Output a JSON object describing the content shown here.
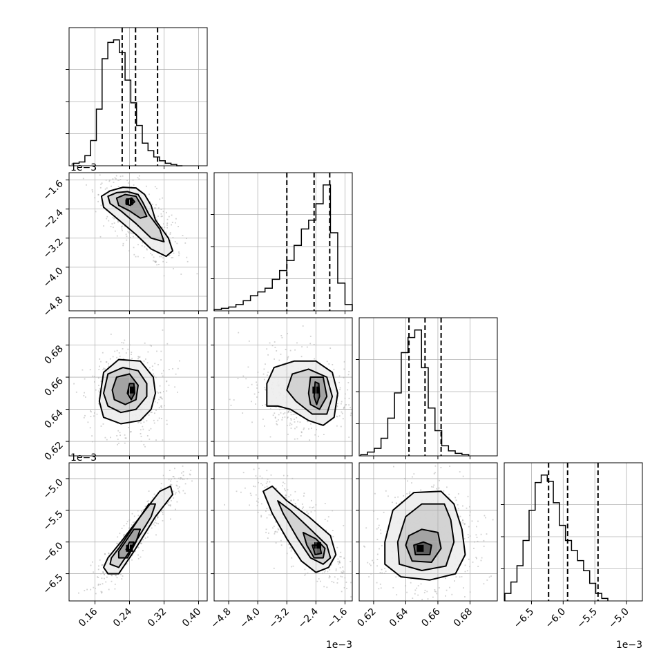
{
  "chart_data": {
    "type": "corner",
    "parameters": [
      {
        "xticks": [
          0.16,
          0.24,
          0.32,
          0.4
        ],
        "xtick_labels": [
          "0.16",
          "0.24",
          "0.32",
          "0.40"
        ],
        "range": [
          0.1,
          0.42
        ],
        "offset": "",
        "hist": {
          "edges_start": 0.11,
          "bin_width": 0.0133,
          "counts": [
            2,
            3,
            8,
            20,
            45,
            85,
            98,
            100,
            90,
            68,
            50,
            32,
            18,
            12,
            7,
            4,
            2,
            1,
            0
          ]
        },
        "quantiles": [
          0.223,
          0.254,
          0.305
        ]
      },
      {
        "xticks": [
          -4.8,
          -4.0,
          -3.2,
          -2.4,
          -1.6
        ],
        "xtick_labels": [
          "−4.8",
          "−4.0",
          "−3.2",
          "−2.4",
          "−1.6"
        ],
        "range": [
          -5.2,
          -1.4
        ],
        "offset": "1e−3",
        "hist": {
          "edges_start": -5.2,
          "bin_width": 0.2,
          "counts": [
            1,
            2,
            3,
            5,
            8,
            12,
            15,
            18,
            25,
            32,
            40,
            52,
            65,
            72,
            85,
            100,
            62,
            22,
            5
          ]
        },
        "quantiles": [
          -3.2,
          -2.45,
          -2.02
        ]
      },
      {
        "yticks": [
          0.62,
          0.64,
          0.66,
          0.68
        ],
        "xtick_labels": [
          "0.62",
          "0.64",
          "0.66",
          "0.68"
        ],
        "ytick_labels": [
          "0.62",
          "0.64",
          "0.66",
          "0.68"
        ],
        "range": [
          0.611,
          0.697
        ],
        "offset": "",
        "hist": {
          "edges_start": 0.612,
          "bin_width": 0.0042,
          "counts": [
            1,
            3,
            6,
            14,
            30,
            50,
            82,
            94,
            100,
            70,
            38,
            20,
            8,
            4,
            2,
            1
          ]
        },
        "quantiles": [
          0.642,
          0.652,
          0.662
        ]
      },
      {
        "xticks": [
          -6.5,
          -6.0,
          -5.5,
          -5.0
        ],
        "xtick_labels": [
          "−6.5",
          "−6.0",
          "−5.5",
          "−5.0"
        ],
        "ytick_labels": [
          "−6.5",
          "−6.0",
          "−5.5",
          "−5.0"
        ],
        "range": [
          -6.93,
          -4.75
        ],
        "offset": "1e−3",
        "hist": {
          "edges_start": -6.92,
          "bin_width": 0.0956,
          "counts": [
            6,
            15,
            28,
            48,
            72,
            94,
            100,
            95,
            78,
            60,
            48,
            40,
            32,
            24,
            14,
            6,
            2
          ]
        },
        "quantiles": [
          -6.23,
          -5.93,
          -5.45
        ]
      }
    ],
    "hist_y_ticks_frac": [
      0.25,
      0.5,
      0.75
    ],
    "pairs": [
      {
        "row": 1,
        "col": 0,
        "mode": [
          0.24,
          -2.2
        ],
        "contours": [
          [
            [
              0.175,
              -2.05
            ],
            [
              0.195,
              -1.9
            ],
            [
              0.225,
              -1.8
            ],
            [
              0.255,
              -1.82
            ],
            [
              0.275,
              -2.0
            ],
            [
              0.29,
              -2.3
            ],
            [
              0.3,
              -2.7
            ],
            [
              0.33,
              -3.2
            ],
            [
              0.34,
              -3.55
            ],
            [
              0.325,
              -3.7
            ],
            [
              0.29,
              -3.5
            ],
            [
              0.255,
              -3.1
            ],
            [
              0.215,
              -2.7
            ],
            [
              0.18,
              -2.35
            ]
          ],
          [
            [
              0.19,
              -2.05
            ],
            [
              0.21,
              -1.95
            ],
            [
              0.235,
              -1.92
            ],
            [
              0.26,
              -2.0
            ],
            [
              0.27,
              -2.2
            ],
            [
              0.285,
              -2.55
            ],
            [
              0.31,
              -2.95
            ],
            [
              0.32,
              -3.3
            ],
            [
              0.29,
              -3.2
            ],
            [
              0.255,
              -2.8
            ],
            [
              0.22,
              -2.45
            ],
            [
              0.195,
              -2.25
            ]
          ],
          [
            [
              0.21,
              -2.1
            ],
            [
              0.23,
              -2.0
            ],
            [
              0.255,
              -2.05
            ],
            [
              0.27,
              -2.35
            ],
            [
              0.28,
              -2.6
            ],
            [
              0.265,
              -2.65
            ],
            [
              0.24,
              -2.45
            ],
            [
              0.215,
              -2.3
            ]
          ],
          [
            [
              0.232,
              -2.15
            ],
            [
              0.245,
              -2.1
            ],
            [
              0.252,
              -2.2
            ],
            [
              0.242,
              -2.3
            ],
            [
              0.232,
              -2.26
            ]
          ]
        ]
      },
      {
        "row": 2,
        "col": 0,
        "mode": [
          0.245,
          0.652
        ],
        "contours": [
          [
            [
              0.17,
              0.645
            ],
            [
              0.18,
              0.663
            ],
            [
              0.215,
              0.671
            ],
            [
              0.265,
              0.67
            ],
            [
              0.295,
              0.66
            ],
            [
              0.3,
              0.65
            ],
            [
              0.29,
              0.64
            ],
            [
              0.265,
              0.633
            ],
            [
              0.22,
              0.631
            ],
            [
              0.18,
              0.635
            ]
          ],
          [
            [
              0.18,
              0.65
            ],
            [
              0.19,
              0.662
            ],
            [
              0.225,
              0.666
            ],
            [
              0.26,
              0.664
            ],
            [
              0.28,
              0.656
            ],
            [
              0.28,
              0.648
            ],
            [
              0.255,
              0.64
            ],
            [
              0.22,
              0.638
            ],
            [
              0.19,
              0.642
            ]
          ],
          [
            [
              0.2,
              0.652
            ],
            [
              0.21,
              0.66
            ],
            [
              0.24,
              0.662
            ],
            [
              0.26,
              0.655
            ],
            [
              0.255,
              0.646
            ],
            [
              0.23,
              0.643
            ],
            [
              0.205,
              0.646
            ]
          ],
          [
            [
              0.235,
              0.65
            ],
            [
              0.24,
              0.656
            ],
            [
              0.25,
              0.656
            ],
            [
              0.252,
              0.65
            ],
            [
              0.244,
              0.646
            ]
          ]
        ]
      },
      {
        "row": 3,
        "col": 0,
        "mode": [
          0.24,
          -6.1
        ],
        "contours": [
          [
            [
              0.18,
              -6.4
            ],
            [
              0.19,
              -6.5
            ],
            [
              0.215,
              -6.5
            ],
            [
              0.25,
              -6.15
            ],
            [
              0.3,
              -5.6
            ],
            [
              0.34,
              -5.25
            ],
            [
              0.335,
              -5.12
            ],
            [
              0.31,
              -5.2
            ],
            [
              0.265,
              -5.6
            ],
            [
              0.22,
              -6.0
            ],
            [
              0.19,
              -6.25
            ]
          ],
          [
            [
              0.195,
              -6.35
            ],
            [
              0.215,
              -6.4
            ],
            [
              0.245,
              -6.1
            ],
            [
              0.29,
              -5.6
            ],
            [
              0.3,
              -5.4
            ],
            [
              0.285,
              -5.4
            ],
            [
              0.25,
              -5.75
            ],
            [
              0.215,
              -6.1
            ],
            [
              0.198,
              -6.25
            ]
          ],
          [
            [
              0.215,
              -6.25
            ],
            [
              0.235,
              -6.25
            ],
            [
              0.255,
              -6.0
            ],
            [
              0.265,
              -5.8
            ],
            [
              0.25,
              -5.8
            ],
            [
              0.23,
              -6.0
            ],
            [
              0.215,
              -6.15
            ]
          ],
          [
            [
              0.232,
              -6.12
            ],
            [
              0.245,
              -6.12
            ],
            [
              0.25,
              -6.0
            ],
            [
              0.24,
              -6.0
            ]
          ]
        ]
      },
      {
        "row": 2,
        "col": 1,
        "mode": [
          -2.4,
          0.652
        ],
        "contours": [
          [
            [
              -3.75,
              0.642
            ],
            [
              -3.75,
              0.656
            ],
            [
              -3.55,
              0.666
            ],
            [
              -3.0,
              0.67
            ],
            [
              -2.4,
              0.67
            ],
            [
              -1.95,
              0.663
            ],
            [
              -1.8,
              0.65
            ],
            [
              -1.9,
              0.635
            ],
            [
              -2.2,
              0.63
            ],
            [
              -2.6,
              0.633
            ],
            [
              -3.1,
              0.64
            ],
            [
              -3.45,
              0.642
            ]
          ],
          [
            [
              -3.2,
              0.652
            ],
            [
              -3.05,
              0.662
            ],
            [
              -2.6,
              0.665
            ],
            [
              -2.1,
              0.66
            ],
            [
              -1.95,
              0.648
            ],
            [
              -2.1,
              0.637
            ],
            [
              -2.5,
              0.637
            ],
            [
              -2.95,
              0.645
            ]
          ],
          [
            [
              -2.6,
              0.65
            ],
            [
              -2.55,
              0.66
            ],
            [
              -2.2,
              0.66
            ],
            [
              -2.1,
              0.648
            ],
            [
              -2.3,
              0.64
            ],
            [
              -2.55,
              0.643
            ]
          ],
          [
            [
              -2.45,
              0.648
            ],
            [
              -2.42,
              0.657
            ],
            [
              -2.32,
              0.656
            ],
            [
              -2.3,
              0.648
            ],
            [
              -2.38,
              0.643
            ]
          ]
        ]
      },
      {
        "row": 3,
        "col": 1,
        "mode": [
          -2.35,
          -6.05
        ],
        "contours": [
          [
            [
              -3.85,
              -5.2
            ],
            [
              -3.6,
              -5.12
            ],
            [
              -3.2,
              -5.35
            ],
            [
              -2.6,
              -5.6
            ],
            [
              -2.0,
              -5.9
            ],
            [
              -1.85,
              -6.2
            ],
            [
              -2.05,
              -6.4
            ],
            [
              -2.4,
              -6.48
            ],
            [
              -2.8,
              -6.3
            ],
            [
              -3.2,
              -5.95
            ],
            [
              -3.6,
              -5.55
            ]
          ],
          [
            [
              -3.45,
              -5.35
            ],
            [
              -3.1,
              -5.5
            ],
            [
              -2.55,
              -5.8
            ],
            [
              -2.1,
              -6.05
            ],
            [
              -2.0,
              -6.25
            ],
            [
              -2.2,
              -6.35
            ],
            [
              -2.55,
              -6.25
            ],
            [
              -2.9,
              -5.95
            ],
            [
              -3.3,
              -5.55
            ]
          ],
          [
            [
              -2.75,
              -5.85
            ],
            [
              -2.4,
              -5.95
            ],
            [
              -2.15,
              -6.1
            ],
            [
              -2.2,
              -6.25
            ],
            [
              -2.45,
              -6.25
            ],
            [
              -2.65,
              -6.05
            ]
          ],
          [
            [
              -2.5,
              -6.05
            ],
            [
              -2.3,
              -6.05
            ],
            [
              -2.25,
              -6.18
            ],
            [
              -2.42,
              -6.2
            ]
          ]
        ]
      },
      {
        "row": 3,
        "col": 2,
        "mode": [
          0.649,
          -6.1
        ],
        "contours": [
          [
            [
              0.627,
              -6.0
            ],
            [
              0.627,
              -6.35
            ],
            [
              0.637,
              -6.55
            ],
            [
              0.655,
              -6.6
            ],
            [
              0.671,
              -6.5
            ],
            [
              0.677,
              -6.2
            ],
            [
              0.675,
              -5.8
            ],
            [
              0.67,
              -5.4
            ],
            [
              0.662,
              -5.2
            ],
            [
              0.645,
              -5.22
            ],
            [
              0.632,
              -5.5
            ]
          ],
          [
            [
              0.635,
              -6.0
            ],
            [
              0.636,
              -6.35
            ],
            [
              0.65,
              -6.45
            ],
            [
              0.665,
              -6.38
            ],
            [
              0.67,
              -6.0
            ],
            [
              0.668,
              -5.65
            ],
            [
              0.664,
              -5.4
            ],
            [
              0.65,
              -5.4
            ],
            [
              0.64,
              -5.6
            ]
          ],
          [
            [
              0.64,
              -6.05
            ],
            [
              0.644,
              -6.3
            ],
            [
              0.656,
              -6.32
            ],
            [
              0.662,
              -6.1
            ],
            [
              0.66,
              -5.85
            ],
            [
              0.65,
              -5.8
            ],
            [
              0.642,
              -5.9
            ]
          ],
          [
            [
              0.645,
              -6.05
            ],
            [
              0.646,
              -6.2
            ],
            [
              0.655,
              -6.2
            ],
            [
              0.656,
              -6.05
            ],
            [
              0.651,
              -6.0
            ]
          ]
        ]
      }
    ]
  }
}
